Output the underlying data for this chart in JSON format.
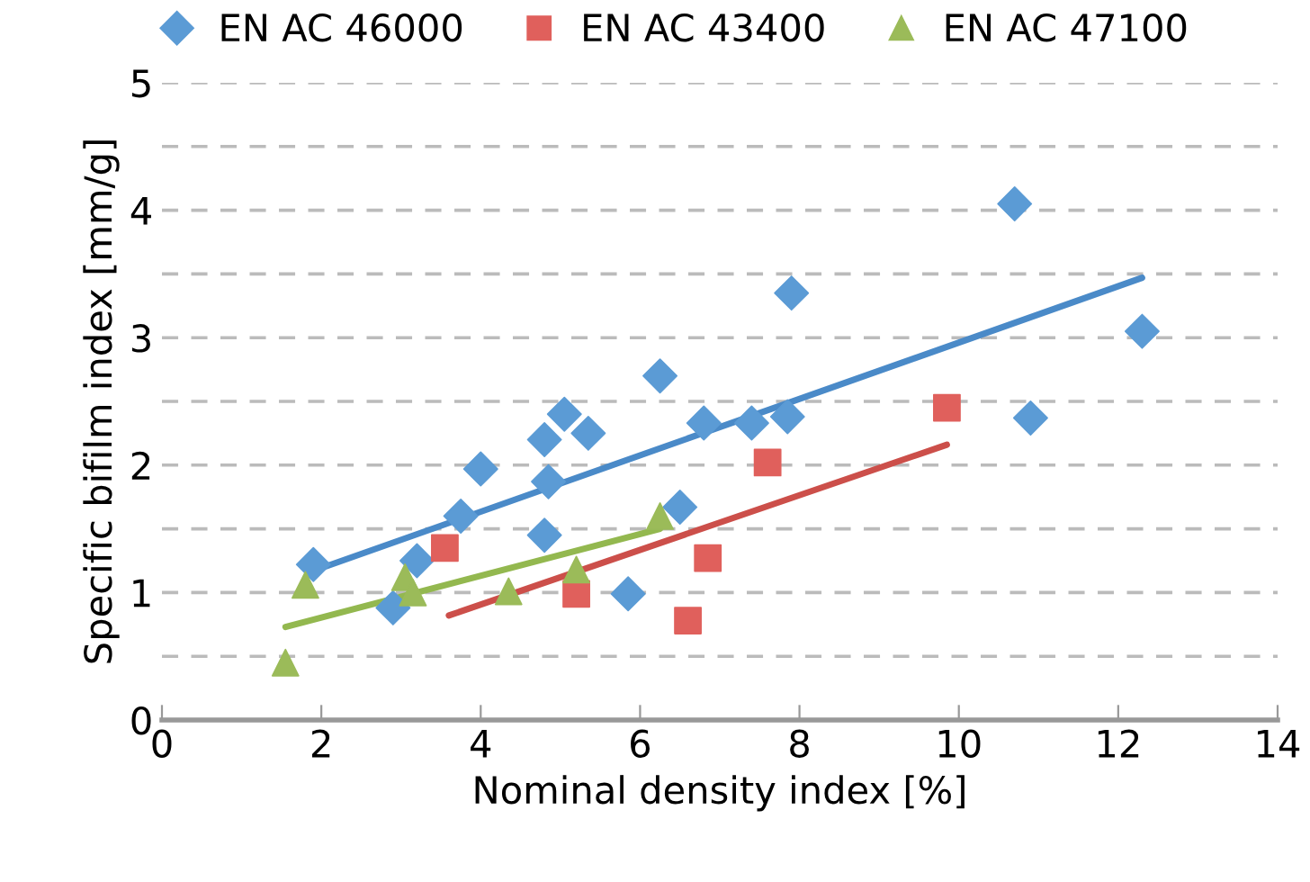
{
  "chart_data": {
    "type": "scatter",
    "xlabel": "Nominal density index [%]",
    "ylabel": "Specific bifilm index [mm/g]",
    "xlim": [
      0,
      14
    ],
    "xticks": [
      0,
      2,
      4,
      6,
      8,
      10,
      12,
      14
    ],
    "ylim": [
      0,
      5
    ],
    "yticks": [
      0,
      {
        "value": 0.5,
        "label": null
      },
      1,
      {
        "value": 1.5,
        "label": null
      },
      2,
      {
        "value": 2.5,
        "label": null
      },
      3,
      {
        "value": 3.5,
        "label": null
      },
      4,
      {
        "value": 4.5,
        "label": null
      },
      5
    ],
    "grid": "y",
    "legend": "top",
    "series": [
      {
        "name": "EN AC 46000",
        "color": "#5b9bd5",
        "marker": "diamond",
        "x": [
          1.9,
          2.9,
          3.2,
          3.75,
          4.0,
          4.8,
          4.8,
          4.85,
          5.05,
          5.35,
          5.85,
          6.25,
          6.5,
          6.8,
          7.4,
          7.85,
          7.9,
          10.7,
          10.9,
          12.3
        ],
        "values": [
          1.22,
          0.88,
          1.25,
          1.6,
          1.97,
          1.45,
          2.2,
          1.87,
          2.4,
          2.25,
          0.99,
          2.7,
          1.67,
          2.33,
          2.33,
          2.38,
          3.35,
          4.05,
          2.37,
          3.05
        ]
      },
      {
        "name": "EN AC 43400",
        "color": "#e0605c",
        "marker": "square",
        "x": [
          3.55,
          5.2,
          6.6,
          6.85,
          7.6,
          9.85
        ],
        "values": [
          1.35,
          0.99,
          0.78,
          1.27,
          2.02,
          2.45
        ]
      },
      {
        "name": "EN AC 47100",
        "color": "#9bbb59",
        "marker": "triangle",
        "x": [
          1.55,
          1.8,
          3.05,
          3.15,
          4.35,
          5.2,
          6.25
        ],
        "values": [
          0.45,
          1.06,
          1.12,
          1.0,
          1.01,
          1.18,
          1.6
        ]
      },
      {
        "type": "line",
        "color": "#4a8ac8",
        "x": [
          1.9,
          12.3
        ],
        "values": [
          1.17,
          3.47
        ]
      },
      {
        "type": "line",
        "color": "#cc4f4a",
        "x": [
          3.6,
          9.85
        ],
        "values": [
          0.82,
          2.16
        ]
      },
      {
        "type": "line",
        "color": "#93b84f",
        "x": [
          1.55,
          6.25
        ],
        "values": [
          0.73,
          1.5
        ]
      }
    ]
  }
}
